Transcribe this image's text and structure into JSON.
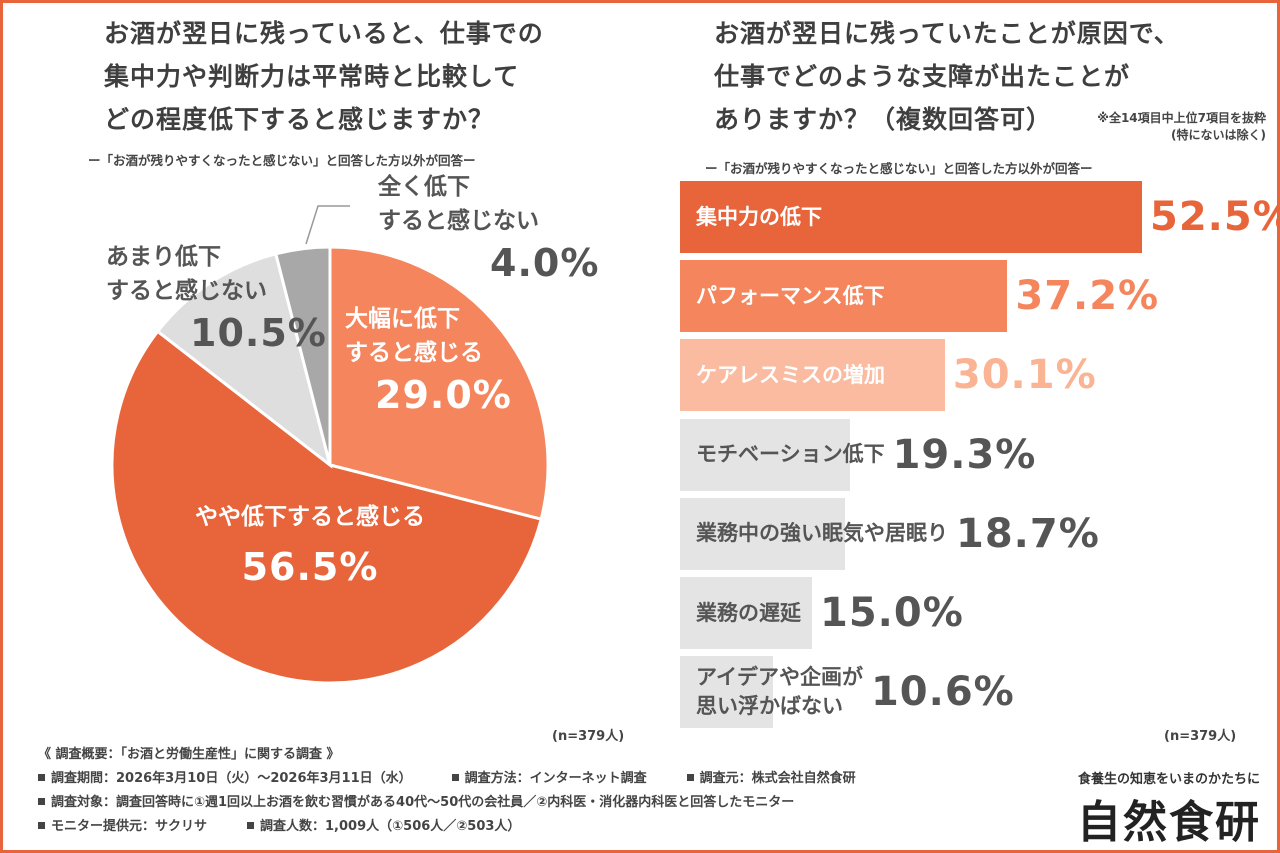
{
  "left": {
    "title_lines": [
      "お酒が翌日に残っていると、仕事での",
      "集中力や判断力は平常時と比較して",
      "どの程度低下すると感じますか？"
    ],
    "subtitle": "ー「お酒が残りやすくなったと感じない」と回答した方以外が回答ー",
    "n": "(n=379人)"
  },
  "right": {
    "title_lines": [
      "お酒が翌日に残っていたことが原因で、",
      "仕事でどのような支障が出たことが",
      "ありますか？（複数回答可）"
    ],
    "note_lines": [
      "※全14項目中上位7項目を抜粋",
      "(特にないは除く)"
    ],
    "subtitle": "ー「お酒が残りやすくなったと感じない」と回答した方以外が回答ー",
    "n": "(n=379人)"
  },
  "chart_data": [
    {
      "type": "pie",
      "start_angle_deg": 0,
      "direction": "clockwise",
      "slices": [
        {
          "label_lines": [
            "大幅に低下",
            "すると感じる"
          ],
          "value": 29.0,
          "value_text": "29.0%",
          "color": "#f4855d",
          "text_color": "#ffffff"
        },
        {
          "label_lines": [
            "やや低下すると感じる"
          ],
          "value": 56.5,
          "value_text": "56.5%",
          "color": "#e8643a",
          "text_color": "#ffffff"
        },
        {
          "label_lines": [
            "あまり低下",
            "すると感じない"
          ],
          "value": 10.5,
          "value_text": "10.5%",
          "color": "#dedede",
          "text_color": "#555555"
        },
        {
          "label_lines": [
            "全く低下",
            "すると感じない"
          ],
          "value": 4.0,
          "value_text": "4.0%",
          "color": "#a8a8a8",
          "text_color": "#555555"
        }
      ]
    },
    {
      "type": "bar",
      "orientation": "horizontal",
      "categories": [
        [
          "集中力の低下"
        ],
        [
          "パフォーマンス低下"
        ],
        [
          "ケアレスミスの増加"
        ],
        [
          "モチベーション低下"
        ],
        [
          "業務中の強い眠気や居眠り"
        ],
        [
          "業務の遅延"
        ],
        [
          "アイデアや企画が",
          "思い浮かばない"
        ]
      ],
      "values": [
        52.5,
        37.2,
        30.1,
        19.3,
        18.7,
        15.0,
        10.6
      ],
      "value_texts": [
        "52.5%",
        "37.2%",
        "30.1%",
        "19.3%",
        "18.7%",
        "15.0%",
        "10.6%"
      ],
      "bar_colors": [
        "#e8643a",
        "#f4855d",
        "#fabba0",
        "#e4e4e4",
        "#e4e4e4",
        "#e4e4e4",
        "#e4e4e4"
      ],
      "label_colors": [
        "#ffffff",
        "#ffffff",
        "#ffffff",
        "#555555",
        "#555555",
        "#555555",
        "#555555"
      ],
      "value_colors": [
        "#e8643a",
        "#f4855d",
        "#fab393",
        "#555555",
        "#555555",
        "#555555",
        "#555555"
      ]
    }
  ],
  "footer": {
    "heading": "《 調査概要：「お酒と労働生産性」に関する調査 》",
    "rows": [
      [
        "調査期間：2026年3月10日（火）〜2026年3月11日（水）",
        "調査方法：インターネット調査",
        "調査元：株式会社自然食研"
      ],
      [
        "調査対象：調査回答時に①週1回以上お酒を飲む習慣がある40代〜50代の会社員／②内科医・消化器内科医と回答したモニター"
      ],
      [
        "モニター提供元：サクリサ",
        "調査人数：1,009人（①506人／②503人）"
      ]
    ]
  },
  "brand": {
    "tagline": "食養生の知恵をいまのかたちに",
    "logo": "自然食研"
  }
}
